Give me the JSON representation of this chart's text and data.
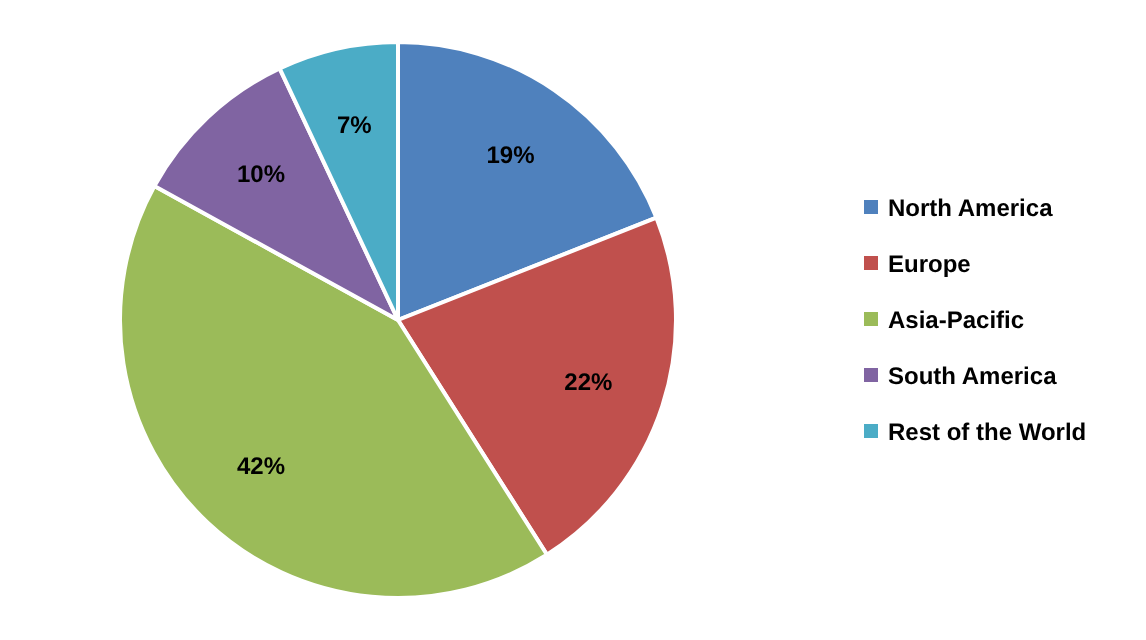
{
  "chart_data": {
    "type": "pie",
    "categories": [
      "North America",
      "Europe",
      "Asia-Pacific",
      "South America",
      "Rest of the World"
    ],
    "values": [
      19,
      22,
      42,
      10,
      7
    ],
    "colors": [
      "#4f81bd",
      "#c0504d",
      "#9bbb59",
      "#8064a2",
      "#4bacc6"
    ],
    "value_labels": [
      "19%",
      "22%",
      "42%",
      "10%",
      "7%"
    ],
    "legend": "right"
  }
}
